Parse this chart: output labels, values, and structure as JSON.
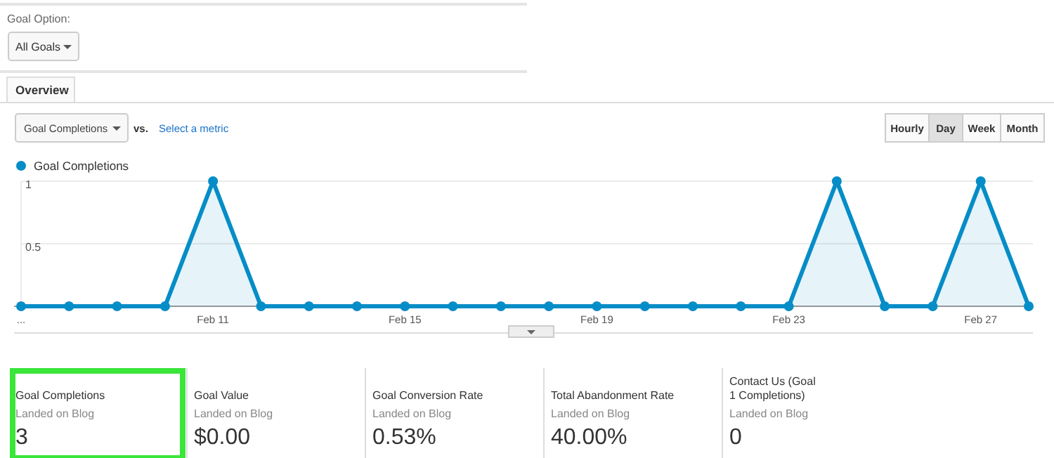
{
  "chart_data": [
    {
      "type": "other",
      "annotations": [
        "Goal Option:",
        "All Goals",
        "Overview",
        "Goal Completions",
        "vs.",
        "Select a metric",
        "Hourly",
        "Day",
        "Week",
        "Month"
      ]
    },
    {
      "type": "area",
      "categories": [
        "...",
        null,
        null,
        null,
        "Feb 11",
        null,
        null,
        null,
        "Feb 15",
        null,
        null,
        null,
        "Feb 19",
        null,
        null,
        null,
        "Feb 23",
        null,
        null,
        null,
        "Feb 27",
        null
      ],
      "series": [
        {
          "name": "Goal Completions",
          "color": "#058dc7",
          "values": [
            0,
            0,
            0,
            0,
            1,
            0,
            0,
            0,
            0,
            0,
            0,
            0,
            0,
            0,
            0,
            0,
            0,
            1,
            0,
            0,
            1,
            0
          ]
        }
      ],
      "ylim": [
        0,
        1
      ],
      "yticks": [
        {
          "value": 0,
          "label": null
        },
        0.5,
        1
      ],
      "grid": "y",
      "legend": "top left",
      "marker": "circle"
    },
    {
      "type": "other",
      "annotations": [
        "Goal Completions",
        "Landed on Blog",
        "3",
        "Goal Value",
        "Landed on Blog",
        "$0.00",
        "Goal Conversion Rate",
        "Landed on Blog",
        "0.53%",
        "Total Abandonment Rate",
        "Landed on Blog",
        "40.00%",
        "Contact Us (Goal 1 Completions)",
        "Landed on Blog",
        "0"
      ]
    }
  ]
}
